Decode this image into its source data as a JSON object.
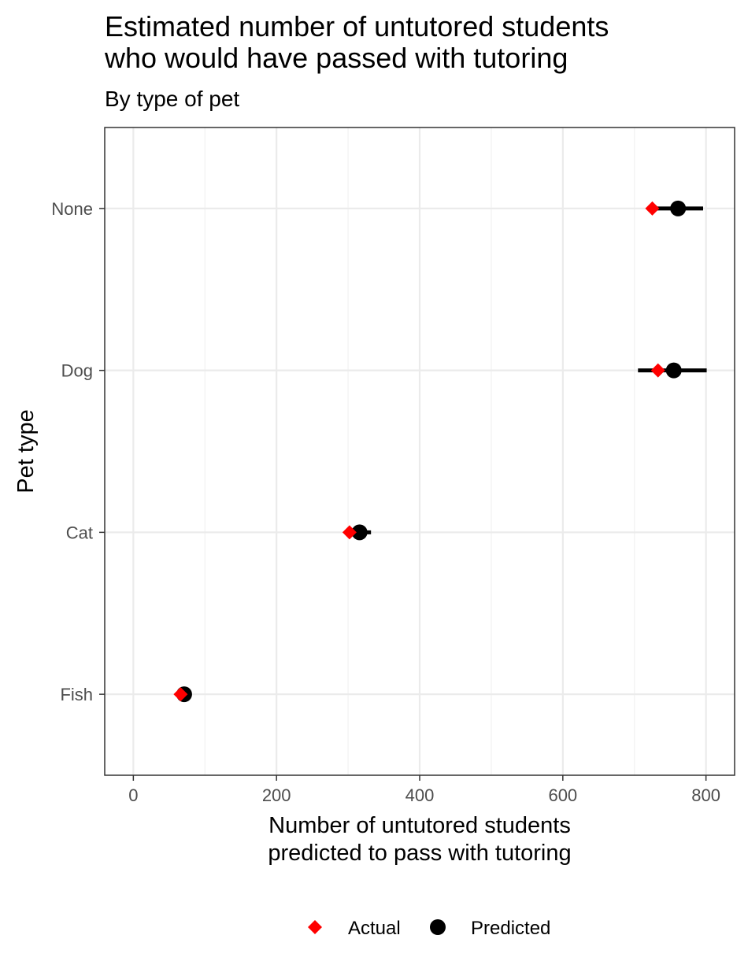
{
  "chart_data": {
    "type": "scatter",
    "title": "Estimated number of untutored students\nwho would have passed with tutoring",
    "subtitle": "By type of pet",
    "xlabel_lines": [
      "Number of untutored students",
      "predicted to pass with tutoring"
    ],
    "ylabel": "Pet type",
    "xlim": [
      -40,
      840
    ],
    "x_ticks": [
      0,
      200,
      400,
      600,
      800
    ],
    "x_tick_labels": [
      "0",
      "200",
      "400",
      "600",
      "800"
    ],
    "categories": [
      "None",
      "Dog",
      "Cat",
      "Fish"
    ],
    "grid": true,
    "legend_position": "bottom",
    "series": [
      {
        "name": "Actual",
        "shape": "diamond",
        "color": "#ff0000",
        "values": [
          725,
          733,
          302,
          66
        ]
      },
      {
        "name": "Predicted",
        "shape": "circle",
        "color": "#000000",
        "values": [
          761,
          755,
          316,
          71
        ],
        "interval_low": [
          724,
          705,
          302,
          64
        ],
        "interval_high": [
          796,
          801,
          332,
          78
        ]
      }
    ]
  }
}
